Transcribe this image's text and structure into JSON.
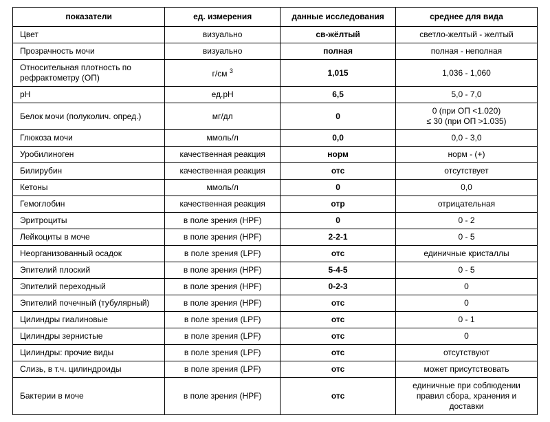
{
  "table": {
    "columns": [
      "показатели",
      "ед. измерения",
      "данные исследования",
      "среднее для вида"
    ],
    "col_align": [
      "left",
      "center",
      "center",
      "center"
    ],
    "header_bold": true,
    "result_bold": true,
    "border_color": "#000000",
    "background_color": "#ffffff",
    "font_family": "Arial",
    "header_fontsize_pt": 11,
    "cell_fontsize_pt": 9,
    "rows": [
      {
        "param": "Цвет",
        "unit": "визуально",
        "result": "св-жёлтый",
        "ref": "светло-желтый - желтый"
      },
      {
        "param": "Прозрачность мочи",
        "unit": "визуально",
        "result": "полная",
        "ref": "полная - неполная"
      },
      {
        "param": "Относительная плотность по рефрактометру (ОП)",
        "unit_html": "г/см <sup>3</sup>",
        "unit": "г/см 3",
        "result": "1,015",
        "ref": "1,036 - 1,060"
      },
      {
        "param": "pH",
        "unit": "ед.pH",
        "result": "6,5",
        "ref": "5,0 - 7,0"
      },
      {
        "param": "Белок мочи (полуколич. опред.)",
        "unit": "мг/дл",
        "result": "0",
        "ref_html": "0 (при ОП &lt;1.020)<br>≤ 30 (при ОП &gt;1.035)",
        "ref": "0 (при ОП <1.020) ≤ 30 (при ОП >1.035)"
      },
      {
        "param": "Глюкоза мочи",
        "unit": "ммоль/л",
        "result": "0,0",
        "ref": "0,0 - 3,0"
      },
      {
        "param": "Уробилиноген",
        "unit": "качественная реакция",
        "result": "норм",
        "ref": "норм - (+)"
      },
      {
        "param": "Билирубин",
        "unit": "качественная реакция",
        "result": "отс",
        "ref": "отсутствует"
      },
      {
        "param": "Кетоны",
        "unit": "ммоль/л",
        "result": "0",
        "ref": "0,0"
      },
      {
        "param": "Гемоглобин",
        "unit": "качественная реакция",
        "result": "отр",
        "ref": "отрицательная"
      },
      {
        "param": "Эритроциты",
        "unit": "в поле зрения (HPF)",
        "result": "0",
        "ref": "0 - 2"
      },
      {
        "param": "Лейкоциты в моче",
        "unit": "в поле зрения (HPF)",
        "result": "2-2-1",
        "ref": "0 - 5"
      },
      {
        "param": "Неорганизованный осадок",
        "unit": "в поле зрения (LPF)",
        "result": "отс",
        "ref": "единичные кристаллы"
      },
      {
        "param": "Эпителий плоский",
        "unit": "в поле зрения (HPF)",
        "result": "5-4-5",
        "ref": "0 - 5"
      },
      {
        "param": "Эпителий переходный",
        "unit": "в поле зрения (HPF)",
        "result": "0-2-3",
        "ref": "0"
      },
      {
        "param": "Эпителий почечный (тубулярный)",
        "unit": "в поле зрения (HPF)",
        "result": "отс",
        "ref": "0"
      },
      {
        "param": "Цилиндры гиалиновые",
        "unit": "в поле зрения (LPF)",
        "result": "отс",
        "ref": "0 - 1"
      },
      {
        "param": "Цилиндры зернистые",
        "unit": "в поле зрения (LPF)",
        "result": "отс",
        "ref": "0"
      },
      {
        "param": "Цилиндры: прочие виды",
        "unit": "в поле зрения (LPF)",
        "result": "отс",
        "ref": "отсутствуют"
      },
      {
        "param": "Слизь, в т.ч. цилиндроиды",
        "unit": "в поле зрения (LPF)",
        "result": "отс",
        "ref": "может присутствовать"
      },
      {
        "param": "Бактерии в моче",
        "unit": "в поле зрения (HPF)",
        "result": "отс",
        "ref": "единичные при соблюдении правил сбора, хранения и доставки"
      }
    ]
  }
}
